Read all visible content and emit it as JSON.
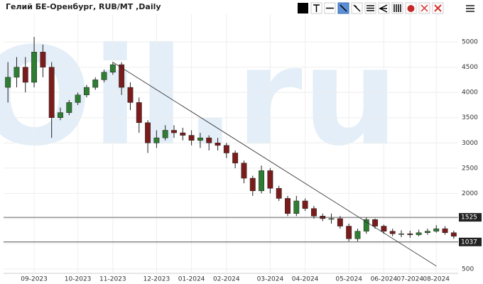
{
  "chart_data": {
    "type": "candlestick",
    "title": "Гелий БЕ-Оренбург, RUB/MT ,Daily",
    "watermark": "eOil.ru",
    "categories": [
      null,
      null,
      null,
      "09-2023",
      null,
      null,
      null,
      null,
      "10-2023",
      null,
      null,
      null,
      "11-2023",
      null,
      null,
      null,
      null,
      "12-2023",
      null,
      null,
      null,
      "01-2024",
      null,
      null,
      null,
      "02-2024",
      null,
      null,
      null,
      null,
      "03-2024",
      null,
      null,
      null,
      "04-2024",
      null,
      null,
      null,
      null,
      "05-2024",
      null,
      null,
      null,
      "06-2024",
      null,
      null,
      "07-2024",
      null,
      null,
      "08-2024",
      null,
      null
    ],
    "open": [
      4100,
      4300,
      4500,
      4200,
      4800,
      4500,
      3500,
      3600,
      3800,
      3950,
      4100,
      4250,
      4400,
      4550,
      4100,
      3800,
      3400,
      3000,
      3100,
      3250,
      3200,
      3150,
      3050,
      3100,
      3000,
      2950,
      2800,
      2600,
      2300,
      2050,
      2450,
      2100,
      1900,
      1600,
      1850,
      1700,
      1550,
      1500,
      1500,
      1350,
      1100,
      1250,
      1480,
      1350,
      1250,
      1200,
      1200,
      1180,
      1220,
      1250,
      1300,
      1220
    ],
    "high": [
      4600,
      4700,
      4700,
      5100,
      4950,
      4600,
      3700,
      3850,
      4000,
      4150,
      4300,
      4450,
      4600,
      4600,
      4200,
      3900,
      3450,
      3250,
      3350,
      3350,
      3300,
      3250,
      3200,
      3150,
      3100,
      3000,
      2850,
      2650,
      2350,
      2550,
      2500,
      2150,
      1950,
      1950,
      1900,
      1750,
      1600,
      1600,
      1550,
      1400,
      1300,
      1520,
      1500,
      1380,
      1300,
      1270,
      1260,
      1280,
      1300,
      1370,
      1350,
      1260
    ],
    "low": [
      3800,
      4100,
      4000,
      4100,
      4300,
      3100,
      3450,
      3550,
      3750,
      3900,
      4050,
      4200,
      4350,
      3950,
      3650,
      3200,
      2800,
      2900,
      3050,
      3100,
      3050,
      2950,
      2900,
      2850,
      2850,
      2700,
      2500,
      2200,
      1950,
      2000,
      2000,
      1850,
      1550,
      1550,
      1650,
      1500,
      1450,
      1400,
      1300,
      1050,
      1050,
      1200,
      1300,
      1200,
      1150,
      1130,
      1120,
      1150,
      1180,
      1220,
      1180,
      1100
    ],
    "close": [
      4300,
      4500,
      4200,
      4800,
      4500,
      3500,
      3600,
      3800,
      3950,
      4100,
      4250,
      4400,
      4550,
      4100,
      3800,
      3400,
      3000,
      3100,
      3250,
      3200,
      3150,
      3050,
      3100,
      3000,
      2950,
      2800,
      2600,
      2300,
      2050,
      2450,
      2100,
      1900,
      1600,
      1850,
      1700,
      1550,
      1500,
      1500,
      1350,
      1100,
      1250,
      1480,
      1350,
      1250,
      1200,
      1200,
      1180,
      1220,
      1250,
      1300,
      1220,
      1150
    ],
    "up_color": "#2e7d32",
    "down_color": "#7b1c1c",
    "ylim": [
      415,
      5550
    ],
    "yticks": [
      500,
      1000,
      1500,
      2000,
      2500,
      3000,
      3500,
      4000,
      4500,
      5000
    ],
    "grid": true,
    "levels": [
      1525,
      1037
    ],
    "trendline": {
      "start": {
        "category": 12,
        "value": 4600
      },
      "end": {
        "category": 49,
        "value": 560
      }
    }
  }
}
